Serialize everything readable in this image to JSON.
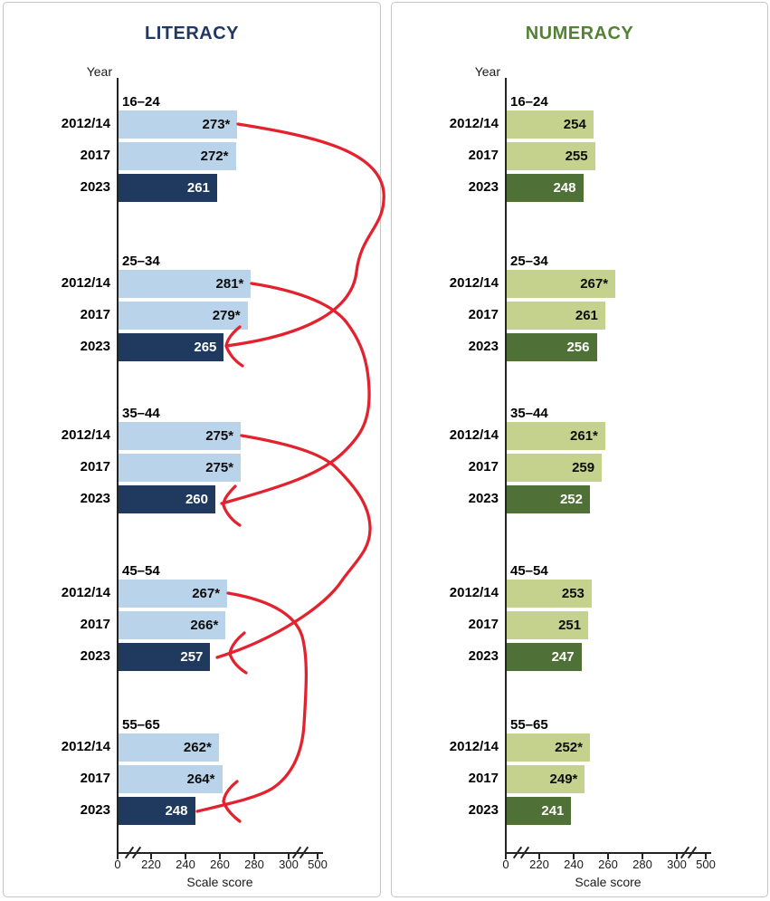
{
  "colors": {
    "literacy_bar_light": "#b9d3ea",
    "literacy_bar_dark": "#20395f",
    "literacy_title": "#1f3864",
    "numeracy_bar_light": "#c4d28e",
    "numeracy_bar_dark": "#4f7137",
    "numeracy_title": "#548235",
    "cohort_arrow_red": "#e2232f"
  },
  "chart_data": [
    {
      "type": "bar",
      "orientation": "horizontal",
      "title": "LITERACY",
      "xlabel": "Scale score",
      "ylabel": "Year",
      "x_ticks": [
        "0",
        "220",
        "240",
        "260",
        "280",
        "300",
        "500"
      ],
      "axis_breaks": [
        [
          0,
          220
        ],
        [
          300,
          500
        ]
      ],
      "xlim": [
        0,
        500
      ],
      "groups": [
        "16–24",
        "25–34",
        "35–44",
        "45–54",
        "55–65"
      ],
      "series": [
        {
          "name": "2012/14",
          "values": [
            273,
            281,
            275,
            267,
            262
          ],
          "labels": [
            "273*",
            "281*",
            "275*",
            "267*",
            "262*"
          ]
        },
        {
          "name": "2017",
          "values": [
            272,
            279,
            275,
            266,
            264
          ],
          "labels": [
            "272*",
            "279*",
            "275*",
            "266*",
            "264*"
          ]
        },
        {
          "name": "2023",
          "values": [
            261,
            265,
            260,
            257,
            248
          ],
          "labels": [
            "261",
            "265",
            "260",
            "257",
            "248"
          ]
        }
      ],
      "annotations": [
        {
          "type": "cohort-arrow",
          "from_age": "16–24",
          "from_year": "2012/14",
          "to_age": "25–34",
          "to_year": "2023"
        },
        {
          "type": "cohort-arrow",
          "from_age": "25–34",
          "from_year": "2012/14",
          "to_age": "35–44",
          "to_year": "2023"
        },
        {
          "type": "cohort-arrow",
          "from_age": "35–44",
          "from_year": "2012/14",
          "to_age": "45–54",
          "to_year": "2023"
        },
        {
          "type": "cohort-arrow",
          "from_age": "45–54",
          "from_year": "2012/14",
          "to_age": "55–65",
          "to_year": "2023"
        }
      ]
    },
    {
      "type": "bar",
      "orientation": "horizontal",
      "title": "NUMERACY",
      "xlabel": "Scale score",
      "ylabel": "Year",
      "x_ticks": [
        "0",
        "220",
        "240",
        "260",
        "280",
        "300",
        "500"
      ],
      "axis_breaks": [
        [
          0,
          220
        ],
        [
          300,
          500
        ]
      ],
      "xlim": [
        0,
        500
      ],
      "groups": [
        "16–24",
        "25–34",
        "35–44",
        "45–54",
        "55–65"
      ],
      "series": [
        {
          "name": "2012/14",
          "values": [
            254,
            267,
            261,
            253,
            252
          ],
          "labels": [
            "254",
            "267*",
            "261*",
            "253",
            "252*"
          ]
        },
        {
          "name": "2017",
          "values": [
            255,
            261,
            259,
            251,
            249
          ],
          "labels": [
            "255",
            "261",
            "259",
            "251",
            "249*"
          ]
        },
        {
          "name": "2023",
          "values": [
            248,
            256,
            252,
            247,
            241
          ],
          "labels": [
            "248",
            "256",
            "252",
            "247",
            "241"
          ]
        }
      ],
      "annotations": []
    }
  ]
}
